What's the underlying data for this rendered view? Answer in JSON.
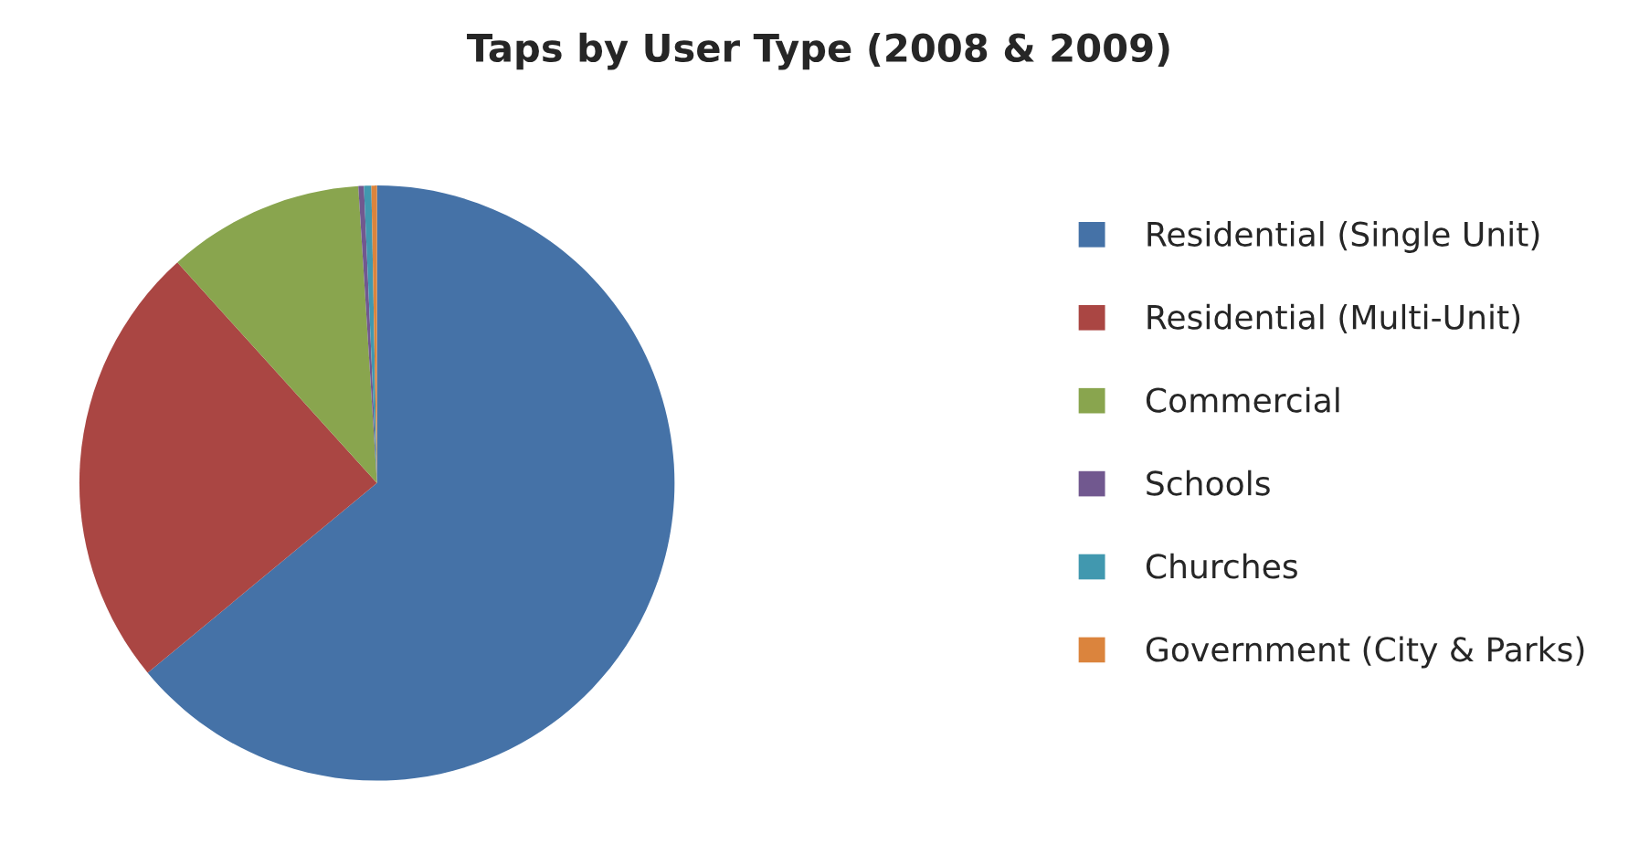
{
  "chart_data": {
    "type": "pie",
    "title": "Taps by User Type (2008 & 2009)",
    "categories": [
      "Residential (Single Unit)",
      "Residential (Multi-Unit)",
      "Commercial",
      "Schools",
      "Churches",
      "Government (City & Parks)"
    ],
    "values": [
      64,
      24.3,
      10.7,
      0.3,
      0.4,
      0.3
    ],
    "colors": [
      "#4572a7",
      "#aa4643",
      "#89a54e",
      "#71588f",
      "#4198af",
      "#db843d"
    ],
    "legend": "right"
  }
}
